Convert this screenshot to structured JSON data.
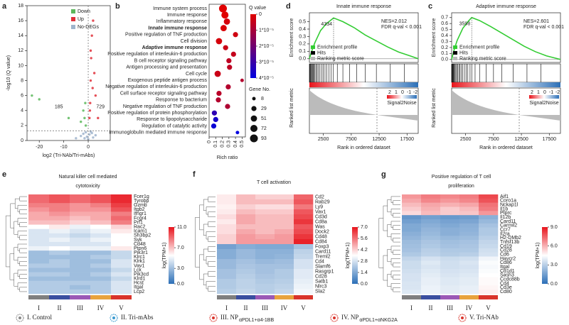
{
  "chart_data": [
    {
      "panel": "a",
      "type": "scatter",
      "xlabel": "log2 (Tri-NAb/Tri-mAbs)",
      "ylabel": "-log10 (Q value)",
      "xlim": [
        -25,
        9
      ],
      "xticks": [
        -20,
        -10,
        0
      ],
      "ylim": [
        0,
        18
      ],
      "yticks": [
        0,
        2,
        4,
        6,
        8,
        10,
        12,
        14,
        16,
        18
      ],
      "threshold_x": 0,
      "threshold_y": 1.3,
      "down_count": 185,
      "up_count": 729,
      "series": [
        {
          "name": "Down",
          "color": "#5cb85c",
          "x": [
            -23,
            -20,
            -8,
            -3,
            -2,
            -1.5,
            -1,
            -1.2
          ],
          "values": [
            6,
            5.5,
            3,
            2.5,
            4,
            3,
            2,
            5
          ]
        },
        {
          "name": "Up",
          "color": "#e0303a",
          "x": [
            0.5,
            0.8,
            1,
            1.2,
            1.5,
            2,
            2.5,
            3,
            1,
            0.7,
            1.8,
            4
          ],
          "values": [
            3,
            5,
            8,
            11,
            14,
            16,
            9,
            6,
            12,
            4,
            7,
            3
          ]
        },
        {
          "name": "No-DEGs",
          "color": "#9fb4cc",
          "x": [
            -5,
            -3,
            -2,
            -1,
            -0.5,
            0,
            0.5,
            1,
            2,
            3,
            -1.5,
            1.5
          ],
          "values": [
            0.3,
            0.6,
            0.9,
            1.1,
            0.5,
            0.2,
            0.8,
            1.2,
            0.4,
            0.7,
            0.3,
            1.0
          ]
        }
      ]
    },
    {
      "panel": "b",
      "type": "dot",
      "xlabel": "Rich ratio",
      "xlim": [
        0,
        0.55
      ],
      "xticks": [
        0,
        0.1,
        0.2,
        0.3,
        0.4,
        0.5
      ],
      "categories": [
        "Immune system process",
        "Immune response",
        "Inflammatory response",
        "Innate immune response",
        "Positive regulation of TNF production",
        "Cell division",
        "Adaptive immune response",
        "Positive regulation of interleukin-6 production",
        "B cell receptor signaling pathway",
        "Antigen processing and presentation",
        "Cell cycle",
        "Exogenous peptide antigen process",
        "Negative regulation of interleukin-6 production",
        "Cell surface receptor signaling pathway",
        "Response to bacterium",
        "Negative regulation of TNF production",
        "Positive regulation of protein phosphorylation",
        "Response to lipopolysaccharide",
        "Regulation of catalytic activity",
        "Immunoglobulin mediated immune response"
      ],
      "highlighted": [
        3,
        6
      ],
      "highlight_color": "#d01010",
      "rich_ratio": [
        0.21,
        0.24,
        0.27,
        0.22,
        0.4,
        0.15,
        0.25,
        0.37,
        0.3,
        0.31,
        0.13,
        0.5,
        0.29,
        0.15,
        0.14,
        0.28,
        0.08,
        0.1,
        0.07,
        0.43
      ],
      "q_values": [
        0,
        0,
        2e-06,
        1e-06,
        3e-06,
        2e-06,
        4e-06,
        5e-06,
        6e-06,
        6e-06,
        4e-06,
        8e-06,
        8e-06,
        7e-06,
        8e-06,
        9e-06,
        3.2e-05,
        3.6e-05,
        3.8e-05,
        4e-05
      ],
      "gene_counts": [
        93,
        72,
        51,
        51,
        29,
        51,
        29,
        29,
        29,
        29,
        51,
        8,
        29,
        29,
        29,
        29,
        29,
        29,
        29,
        8
      ],
      "q_title": "Q value",
      "qlim": [
        0,
        4e-05
      ],
      "q_colors": [
        "#e00000",
        "#0000e0"
      ],
      "qticks": [
        0,
        {
          "value": 1e-05,
          "label": "1*10⁻⁵"
        },
        {
          "value": 2e-05,
          "label": "2*10⁻⁵"
        },
        {
          "value": 3e-05,
          "label": "3*10⁻⁵"
        },
        {
          "value": 4e-05,
          "label": "4*10⁻⁵"
        }
      ],
      "size_title": "Gene No.",
      "size_legend": [
        8,
        29,
        51,
        72,
        93
      ]
    },
    {
      "panel": "d",
      "type": "gsea",
      "title": "Innate immune response",
      "nes_label": "NES=2.012",
      "fdr_label": "FDR q-val < 0.001",
      "peak": 4334,
      "ylabel": "Enrichment score",
      "ylabel2": "Ranked list metric",
      "xlabel": "Rank in ordered dataset",
      "xlim": [
        0,
        19500
      ],
      "xticks": [
        2500,
        7500,
        12500,
        17500
      ],
      "ylim": [
        -0.05,
        0.62
      ],
      "yticks": [
        {
          "value": 0,
          "label": "0.0"
        },
        0.1,
        0.2,
        0.3,
        0.4,
        0.5
      ],
      "x": [
        0,
        500,
        1000,
        2000,
        3000,
        4334,
        6000,
        8000,
        10000,
        12000,
        14000,
        16000,
        18000,
        19500
      ],
      "values": [
        0,
        0.12,
        0.22,
        0.38,
        0.47,
        0.55,
        0.5,
        0.42,
        0.32,
        0.24,
        0.16,
        0.09,
        0.04,
        0
      ],
      "hits": [
        50,
        120,
        200,
        300,
        420,
        560,
        700,
        850,
        1000,
        1200,
        1400,
        1650,
        1900,
        2200,
        2500,
        2800,
        3100,
        3500,
        3900,
        4300,
        5000,
        6000,
        7200,
        8500,
        10000,
        12000,
        14500,
        17000
      ],
      "legend": [
        {
          "name": "Enrichment profile",
          "color": "#33cc33"
        },
        {
          "name": "Hits",
          "color": "#000000"
        },
        {
          "name": "Ranking metric score",
          "color": "#bbbbbb"
        }
      ],
      "metric_ticks": [
        2,
        1,
        0,
        -1,
        -2
      ],
      "metric_label": "Signal2Noise"
    },
    {
      "panel": "c",
      "type": "gsea",
      "title": "Adaptive immune response",
      "nes_label": "NES=2.601",
      "fdr_label": "FDR q-val < 0.001",
      "peak": 3598,
      "ylabel": "Enrichment score",
      "ylabel2": "Ranked list metric",
      "xlabel": "Rank in ordered dataset",
      "xlim": [
        0,
        19500
      ],
      "xticks": [
        2500,
        7500,
        12500,
        17500
      ],
      "ylim": [
        -0.05,
        0.78
      ],
      "yticks": [
        {
          "value": 0,
          "label": "0.0"
        },
        0.1,
        0.2,
        0.3,
        0.4,
        0.5,
        0.6,
        0.7
      ],
      "x": [
        0,
        500,
        1000,
        2000,
        3000,
        3598,
        5000,
        7000,
        9000,
        11000,
        13000,
        15000,
        17000,
        19500
      ],
      "values": [
        0,
        0.18,
        0.32,
        0.52,
        0.64,
        0.7,
        0.65,
        0.55,
        0.44,
        0.33,
        0.22,
        0.13,
        0.06,
        0
      ],
      "hits": [
        40,
        100,
        180,
        260,
        350,
        450,
        600,
        750,
        900,
        1100,
        1300,
        1500,
        1750,
        2000,
        2300,
        2600,
        2900,
        3300,
        3600,
        4200,
        5000,
        6200,
        7500,
        9000,
        11000,
        13500,
        16000
      ],
      "legend": [
        {
          "name": "Enrichment profile",
          "color": "#33cc33"
        },
        {
          "name": "Hits",
          "color": "#000000"
        },
        {
          "name": "Ranking metric score",
          "color": "#bbbbbb"
        }
      ],
      "metric_ticks": [
        2,
        1,
        0,
        -1,
        -2
      ],
      "metric_label": "Signal2Noise"
    },
    {
      "panel": "e",
      "type": "heatmap",
      "title": [
        "Natural killer cell mediated",
        "cytotoxicity"
      ],
      "columns": [
        "I",
        "II",
        "III",
        "IV",
        "V"
      ],
      "column_colors": [
        "#7f7f7f",
        "#3a4fa0",
        "#9b59b6",
        "#e8a33d",
        "#d9342b"
      ],
      "colors": [
        "#2c6fb7",
        "#ffffff",
        "#e8141c"
      ],
      "colorbar_label": "log(TPM+1)",
      "zlim": [
        0,
        11
      ],
      "zticks": [
        {
          "value": 0,
          "label": "0.0"
        },
        {
          "value": 3,
          "label": "3.0"
        },
        {
          "value": 7,
          "label": "7.0"
        },
        {
          "value": 11,
          "label": "11.0"
        }
      ],
      "rows": [
        "Fcer1g",
        "Tyrobp",
        "Gzmb",
        "Itgb2",
        "Ifngr1",
        "Fcgr4",
        "Prf1",
        "Rac2",
        "Icam1",
        "Sh3bp2",
        "Syk",
        "Cd48",
        "Ptpn6",
        "Pik3r1",
        "Klrc1",
        "Klrk1",
        "Vav1",
        "Lck",
        "Pik3cd",
        "Klrd1",
        "Hcst",
        "Itgal",
        "Lcp2"
      ],
      "values": [
        [
          9,
          9.5,
          9,
          9.5,
          10.5
        ],
        [
          9,
          9.5,
          9,
          9.5,
          10.5
        ],
        [
          8.5,
          8.5,
          8,
          8.5,
          10
        ],
        [
          8,
          8.5,
          8,
          8,
          9.5
        ],
        [
          7.5,
          8,
          7.5,
          7.5,
          8.5
        ],
        [
          7.5,
          7.5,
          7,
          7.5,
          9
        ],
        [
          7,
          7,
          6.5,
          7,
          8.5
        ],
        [
          5.5,
          6,
          5,
          5.5,
          6.5
        ],
        [
          4.5,
          5,
          4.5,
          5,
          6
        ],
        [
          4.5,
          4.5,
          4,
          4.5,
          5.5
        ],
        [
          4.5,
          5,
          4.5,
          5,
          5.5
        ],
        [
          4.5,
          4.5,
          4.5,
          4.5,
          5.5
        ],
        [
          5,
          5.5,
          5,
          5,
          6
        ],
        [
          3,
          3.5,
          3,
          3,
          4
        ],
        [
          3,
          3,
          3,
          3.5,
          4
        ],
        [
          3,
          3.5,
          3,
          3,
          4.5
        ],
        [
          3.5,
          3.5,
          3,
          3.5,
          4.5
        ],
        [
          3,
          3,
          3,
          3,
          4
        ],
        [
          3.5,
          3.5,
          3,
          3.5,
          4.5
        ],
        [
          3,
          3,
          3,
          3,
          4
        ],
        [
          3.5,
          3.5,
          3.5,
          3.5,
          4.5
        ],
        [
          3.5,
          3.5,
          3,
          3.5,
          4.5
        ],
        [
          3.5,
          3.5,
          3.5,
          3.5,
          4.5
        ]
      ]
    },
    {
      "panel": "f",
      "type": "heatmap",
      "title": [
        "T cell activation"
      ],
      "columns": [
        "I",
        "II",
        "III",
        "IV",
        "V"
      ],
      "column_colors": [
        "#7f7f7f",
        "#3a4fa0",
        "#9b59b6",
        "#e8a33d",
        "#d9342b"
      ],
      "colors": [
        "#2c6fb7",
        "#ffffff",
        "#e8141c"
      ],
      "colorbar_label": "log(TPM+1)",
      "zlim": [
        0,
        7
      ],
      "zticks": [
        {
          "value": 0,
          "label": "0.0"
        },
        1.4,
        2.8,
        4.2,
        5.6,
        {
          "value": 7,
          "label": "7.0"
        }
      ],
      "rows": [
        "Cd2",
        "Rab29",
        "Ly9",
        "Vav1",
        "Cd3d",
        "Cd8a",
        "Was",
        "Dock2",
        "Cd48",
        "Cd84",
        "Foxp3",
        "Card11",
        "Treml2",
        "Cd4",
        "Slamf6",
        "Rasgrp1",
        "Cd28",
        "Satb1",
        "Nlrc3",
        "Sla2"
      ],
      "values": [
        [
          3.8,
          4.5,
          4.2,
          4.2,
          5.8
        ],
        [
          3.8,
          4.5,
          4.5,
          4.5,
          6
        ],
        [
          3.7,
          4.2,
          4,
          4,
          5.5
        ],
        [
          3.8,
          4.5,
          4.3,
          4.3,
          6
        ],
        [
          4,
          4.8,
          4.5,
          4.5,
          6.2
        ],
        [
          3.8,
          4.8,
          4.5,
          4.5,
          6.5
        ],
        [
          4,
          4.5,
          4.5,
          4.5,
          6
        ],
        [
          4,
          4.8,
          4.5,
          4.8,
          6.2
        ],
        [
          4.2,
          5,
          4.8,
          5,
          6.5
        ],
        [
          4.2,
          5,
          5,
          5,
          6.8
        ],
        [
          1.2,
          1.5,
          1.4,
          1.4,
          2
        ],
        [
          1.5,
          1.8,
          1.6,
          1.6,
          2.4
        ],
        [
          1.5,
          1.8,
          1.6,
          1.7,
          2.5
        ],
        [
          1.8,
          2,
          1.8,
          1.9,
          2.8
        ],
        [
          1.8,
          2.1,
          2,
          2,
          2.8
        ],
        [
          2,
          2.2,
          2,
          2.2,
          3
        ],
        [
          2,
          2.3,
          2.1,
          2.2,
          3
        ],
        [
          2.2,
          2.4,
          2.2,
          2.3,
          3.1
        ],
        [
          2.2,
          2.4,
          2.3,
          2.4,
          3.2
        ],
        [
          2.3,
          2.5,
          2.3,
          2.5,
          3.3
        ]
      ]
    },
    {
      "panel": "g",
      "type": "heatmap",
      "title": [
        "Positive regulation of T cell",
        "proliferation"
      ],
      "columns": [
        "I",
        "II",
        "III",
        "IV",
        "V"
      ],
      "column_colors": [
        "#7f7f7f",
        "#3a4fa0",
        "#9b59b6",
        "#e8a33d",
        "#d9342b"
      ],
      "colors": [
        "#2c6fb7",
        "#ffffff",
        "#e8141c"
      ],
      "colorbar_label": "log(TPM+1)",
      "zlim": [
        0,
        9
      ],
      "zticks": [
        {
          "value": 0,
          "label": "0.0"
        },
        {
          "value": 3,
          "label": "3.0"
        },
        {
          "value": 6,
          "label": "6.0"
        },
        {
          "value": 9,
          "label": "9.0"
        }
      ],
      "rows": [
        "Aif1",
        "Coro1a",
        "Nckap1l",
        "Il1b",
        "Ptprc",
        "Il12b",
        "Card11",
        "Carmil2",
        "Ccr7",
        "Il2ra",
        "H2-DMb2",
        "Tnfsf13b",
        "Cd19",
        "Cd28",
        "Cd6",
        "Havcr2",
        "Cd86",
        "Itgal",
        "Cd1d1",
        "Sash3",
        "Ccdc88b",
        "Cd4",
        "Cd3e",
        "Cd80"
      ],
      "values": [
        [
          6.5,
          7,
          6.8,
          7,
          8
        ],
        [
          6.2,
          6.8,
          6.5,
          6.8,
          7.8
        ],
        [
          5.8,
          6.2,
          6,
          6.2,
          7.2
        ],
        [
          5.5,
          6,
          5.5,
          5.8,
          7
        ],
        [
          5.2,
          5.8,
          5.5,
          5.6,
          6.5
        ],
        [
          1.2,
          1.5,
          1.3,
          1.4,
          2
        ],
        [
          1.5,
          1.8,
          1.6,
          1.7,
          2.3
        ],
        [
          1.8,
          2,
          1.8,
          2,
          2.6
        ],
        [
          1.8,
          2.2,
          2,
          2.1,
          2.8
        ],
        [
          2,
          2.3,
          2,
          2.2,
          2.8
        ],
        [
          2.2,
          2.5,
          2.3,
          2.4,
          3
        ],
        [
          2.4,
          2.7,
          2.5,
          2.6,
          3.2
        ],
        [
          2.5,
          2.8,
          2.6,
          2.7,
          3.3
        ],
        [
          2.6,
          3,
          2.8,
          2.8,
          3.5
        ],
        [
          2.8,
          3.1,
          2.9,
          3,
          3.6
        ],
        [
          3.2,
          3.6,
          3.4,
          3.5,
          4.2
        ],
        [
          3.4,
          3.8,
          3.5,
          3.7,
          4.4
        ],
        [
          3.4,
          3.7,
          3.5,
          3.6,
          4.3
        ],
        [
          3.5,
          3.8,
          3.6,
          3.7,
          4.4
        ],
        [
          3.6,
          3.9,
          3.7,
          3.8,
          4.5
        ],
        [
          3.6,
          4,
          3.8,
          3.9,
          4.6
        ],
        [
          3.7,
          4,
          3.8,
          3.9,
          4.6
        ],
        [
          3.7,
          4.1,
          3.9,
          4,
          4.7
        ],
        [
          3.8,
          4.1,
          3.9,
          4,
          4.8
        ]
      ]
    }
  ],
  "legend": [
    {
      "label": "I. Control"
    },
    {
      "label": "II. Tri-mAbs"
    },
    {
      "label": "III. NP",
      "sub": "αPDL1+α4-1BB"
    },
    {
      "label": "IV. NP",
      "sub": "αPDL1+αNKG2A"
    },
    {
      "label": "V. Tri-NAb"
    }
  ]
}
